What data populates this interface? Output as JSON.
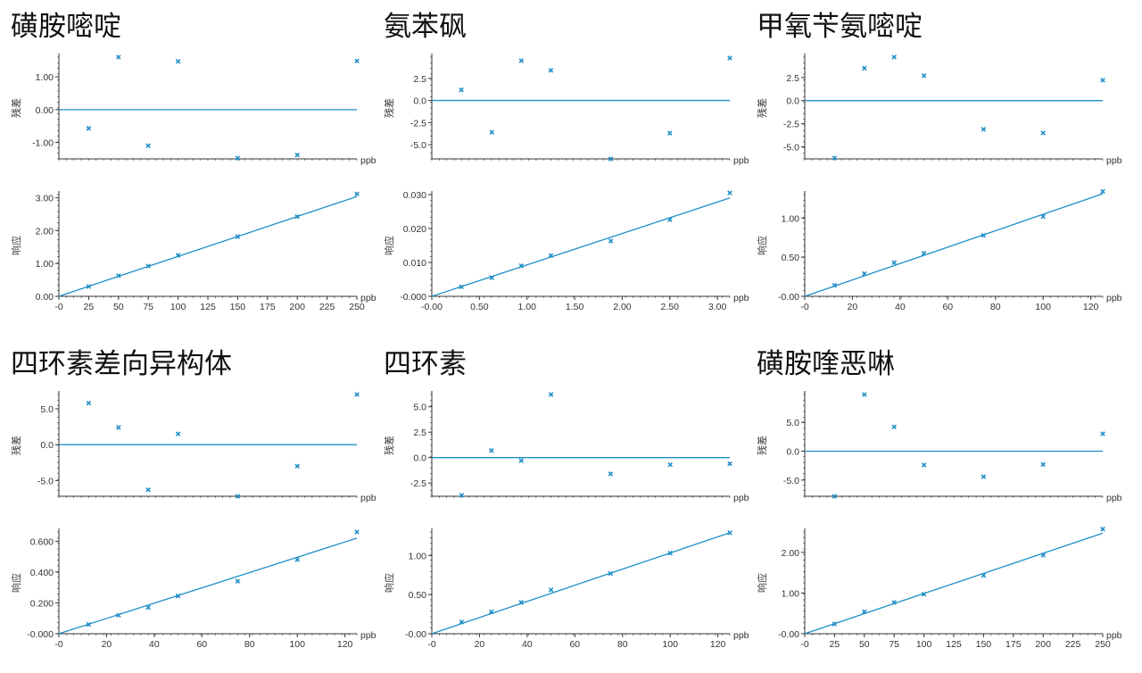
{
  "colors": {
    "series": "#1f8fc7",
    "axis": "#333333",
    "text": "#333333",
    "title": "#111111"
  },
  "chart_data": [
    {
      "title": "磺胺嘧啶",
      "residual": {
        "type": "scatter",
        "ylabel": "残差",
        "xunit": "ppb",
        "xlim": [
          0,
          250
        ],
        "ylim": [
          -1.5,
          1.6
        ],
        "yticks": [
          1.0,
          0.0,
          -1.0
        ],
        "ytick_labels": [
          "1.00",
          "0.00",
          "-1.00"
        ],
        "points": [
          [
            25,
            -0.57
          ],
          [
            50,
            1.6
          ],
          [
            75,
            -1.1
          ],
          [
            100,
            1.47
          ],
          [
            150,
            -1.48
          ],
          [
            200,
            -1.38
          ],
          [
            250,
            1.48
          ]
        ]
      },
      "response": {
        "type": "scatter+line",
        "ylabel": "响应",
        "xunit": "ppb",
        "xlim": [
          0,
          250
        ],
        "ylim": [
          0,
          3.1
        ],
        "xticks": [
          0,
          25,
          50,
          75,
          100,
          125,
          150,
          175,
          200,
          225,
          250
        ],
        "xtick_labels": [
          "-0",
          "25",
          "50",
          "75",
          "100",
          "125",
          "150",
          "175",
          "200",
          "225",
          "250"
        ],
        "yticks": [
          0,
          1,
          2,
          3
        ],
        "ytick_labels": [
          "0.00",
          "1.00",
          "2.00",
          "3.00"
        ],
        "points": [
          [
            25,
            0.3
          ],
          [
            50,
            0.63
          ],
          [
            75,
            0.92
          ],
          [
            100,
            1.25
          ],
          [
            150,
            1.82
          ],
          [
            200,
            2.43
          ],
          [
            250,
            3.12
          ]
        ],
        "fit": [
          [
            0,
            0.0
          ],
          [
            250,
            3.04
          ]
        ]
      }
    },
    {
      "title": "氨苯砜",
      "residual": {
        "type": "scatter",
        "ylabel": "残差",
        "xunit": "ppb",
        "xlim": [
          0,
          3.13
        ],
        "ylim": [
          -6.6,
          4.9
        ],
        "yticks": [
          2.5,
          0.0,
          -2.5,
          -5.0
        ],
        "ytick_labels": [
          "2.5",
          "0.0",
          "-2.5",
          "-5.0"
        ],
        "points": [
          [
            0.31,
            1.2
          ],
          [
            0.63,
            -3.6
          ],
          [
            0.94,
            4.5
          ],
          [
            1.25,
            3.4
          ],
          [
            1.88,
            -6.6
          ],
          [
            2.5,
            -3.7
          ],
          [
            3.13,
            4.8
          ]
        ]
      },
      "response": {
        "type": "scatter+line",
        "ylabel": "响应",
        "xunit": "ppb",
        "xlim": [
          0,
          3.13
        ],
        "ylim": [
          0,
          0.03
        ],
        "xticks": [
          0,
          0.5,
          1.0,
          1.5,
          2.0,
          2.5,
          3.0
        ],
        "xtick_labels": [
          "-0.00",
          "0.50",
          "1.00",
          "1.50",
          "2.00",
          "2.50",
          "3.00"
        ],
        "yticks": [
          0,
          0.01,
          0.02,
          0.03
        ],
        "ytick_labels": [
          "-0.000",
          "0.010",
          "0.020",
          "0.030"
        ],
        "points": [
          [
            0.31,
            0.0028
          ],
          [
            0.63,
            0.0055
          ],
          [
            0.94,
            0.009
          ],
          [
            1.25,
            0.012
          ],
          [
            1.88,
            0.0163
          ],
          [
            2.5,
            0.0226
          ],
          [
            3.13,
            0.0305
          ]
        ],
        "fit": [
          [
            0,
            0.0
          ],
          [
            3.13,
            0.029
          ]
        ]
      }
    },
    {
      "title": "甲氧苄氨嘧啶",
      "residual": {
        "type": "scatter",
        "ylabel": "残差",
        "xunit": "ppb",
        "xlim": [
          0,
          125
        ],
        "ylim": [
          -6.3,
          4.7
        ],
        "yticks": [
          2.5,
          0.0,
          -2.5,
          -5.0
        ],
        "ytick_labels": [
          "2.5",
          "0.0",
          "-2.5",
          "-5.0"
        ],
        "points": [
          [
            12.5,
            -6.2
          ],
          [
            25,
            3.5
          ],
          [
            37.5,
            4.7
          ],
          [
            50,
            2.7
          ],
          [
            75,
            -3.1
          ],
          [
            100,
            -3.5
          ],
          [
            125,
            2.2
          ]
        ]
      },
      "response": {
        "type": "scatter+line",
        "ylabel": "响应",
        "xunit": "ppb",
        "xlim": [
          0,
          125
        ],
        "ylim": [
          0,
          1.3
        ],
        "xticks": [
          0,
          20,
          40,
          60,
          80,
          100,
          120
        ],
        "xtick_labels": [
          "-0",
          "20",
          "40",
          "60",
          "80",
          "100",
          "120"
        ],
        "yticks": [
          0,
          0.5,
          1.0
        ],
        "ytick_labels": [
          "-0.00",
          "0.50",
          "1.00"
        ],
        "points": [
          [
            12.5,
            0.14
          ],
          [
            25,
            0.29
          ],
          [
            37.5,
            0.43
          ],
          [
            50,
            0.55
          ],
          [
            75,
            0.78
          ],
          [
            100,
            1.02
          ],
          [
            125,
            1.34
          ]
        ],
        "fit": [
          [
            0,
            0.0
          ],
          [
            125,
            1.31
          ]
        ]
      }
    },
    {
      "title": "四环素差向异构体",
      "residual": {
        "type": "scatter",
        "ylabel": "残差",
        "xunit": "ppb",
        "xlim": [
          0,
          125
        ],
        "ylim": [
          -7.2,
          7.0
        ],
        "yticks": [
          5.0,
          0.0,
          -5.0
        ],
        "ytick_labels": [
          "5.0",
          "0.0",
          "-5.0"
        ],
        "points": [
          [
            12.5,
            5.8
          ],
          [
            25,
            2.4
          ],
          [
            37.5,
            -6.3
          ],
          [
            50,
            1.5
          ],
          [
            75,
            -7.2
          ],
          [
            100,
            -3.0
          ],
          [
            125,
            7.0
          ]
        ]
      },
      "response": {
        "type": "scatter+line",
        "ylabel": "响应",
        "xunit": "ppb",
        "xlim": [
          0,
          125
        ],
        "ylim": [
          0,
          0.66
        ],
        "xticks": [
          0,
          20,
          40,
          60,
          80,
          100,
          120
        ],
        "xtick_labels": [
          "-0",
          "20",
          "40",
          "60",
          "80",
          "100",
          "120"
        ],
        "yticks": [
          0,
          0.2,
          0.4,
          0.6
        ],
        "ytick_labels": [
          "-0.000",
          "0.200",
          "0.400",
          "0.600"
        ],
        "points": [
          [
            12.5,
            0.06
          ],
          [
            25,
            0.12
          ],
          [
            37.5,
            0.17
          ],
          [
            50,
            0.245
          ],
          [
            75,
            0.34
          ],
          [
            100,
            0.48
          ],
          [
            125,
            0.66
          ]
        ],
        "fit": [
          [
            0,
            0.0
          ],
          [
            125,
            0.62
          ]
        ]
      }
    },
    {
      "title": "四环素",
      "residual": {
        "type": "scatter",
        "ylabel": "残差",
        "xunit": "ppb",
        "xlim": [
          0,
          125
        ],
        "ylim": [
          -3.8,
          6.2
        ],
        "yticks": [
          5.0,
          2.5,
          0.0,
          -2.5
        ],
        "ytick_labels": [
          "5.0",
          "2.5",
          "0.0",
          "-2.5"
        ],
        "points": [
          [
            12.5,
            -3.7
          ],
          [
            25,
            0.7
          ],
          [
            37.5,
            -0.3
          ],
          [
            50,
            6.2
          ],
          [
            75,
            -1.6
          ],
          [
            100,
            -0.7
          ],
          [
            125,
            -0.6
          ]
        ]
      },
      "response": {
        "type": "scatter+line",
        "ylabel": "响应",
        "xunit": "ppb",
        "xlim": [
          0,
          125
        ],
        "ylim": [
          0,
          1.3
        ],
        "xticks": [
          0,
          20,
          40,
          60,
          80,
          100,
          120
        ],
        "xtick_labels": [
          "-0",
          "20",
          "40",
          "60",
          "80",
          "100",
          "120"
        ],
        "yticks": [
          0,
          0.5,
          1.0
        ],
        "ytick_labels": [
          "-0.00",
          "0.50",
          "1.00"
        ],
        "points": [
          [
            12.5,
            0.15
          ],
          [
            25,
            0.28
          ],
          [
            37.5,
            0.4
          ],
          [
            50,
            0.56
          ],
          [
            75,
            0.77
          ],
          [
            100,
            1.03
          ],
          [
            125,
            1.29
          ]
        ],
        "fit": [
          [
            0,
            0.0
          ],
          [
            125,
            1.29
          ]
        ]
      }
    },
    {
      "title": "磺胺喹恶啉",
      "residual": {
        "type": "scatter",
        "ylabel": "残差",
        "xunit": "ppb",
        "xlim": [
          0,
          250
        ],
        "ylim": [
          -7.8,
          9.8
        ],
        "yticks": [
          5.0,
          0.0,
          -5.0
        ],
        "ytick_labels": [
          "5.0",
          "0.0",
          "-5.0"
        ],
        "points": [
          [
            25,
            -7.8
          ],
          [
            50,
            9.8
          ],
          [
            75,
            4.2
          ],
          [
            100,
            -2.4
          ],
          [
            150,
            -4.4
          ],
          [
            200,
            -2.3
          ],
          [
            250,
            3.0
          ]
        ]
      },
      "response": {
        "type": "scatter+line",
        "ylabel": "响应",
        "xunit": "ppb",
        "xlim": [
          0,
          250
        ],
        "ylim": [
          0,
          2.5
        ],
        "xticks": [
          0,
          25,
          50,
          75,
          100,
          125,
          150,
          175,
          200,
          225,
          250
        ],
        "xtick_labels": [
          "-0",
          "25",
          "50",
          "75",
          "100",
          "125",
          "150",
          "175",
          "200",
          "225",
          "250"
        ],
        "yticks": [
          0,
          1,
          2
        ],
        "ytick_labels": [
          "-0.00",
          "1.00",
          "2.00"
        ],
        "points": [
          [
            25,
            0.24
          ],
          [
            50,
            0.54
          ],
          [
            75,
            0.77
          ],
          [
            100,
            0.97
          ],
          [
            150,
            1.43
          ],
          [
            200,
            1.93
          ],
          [
            250,
            2.57
          ]
        ],
        "fit": [
          [
            0,
            0.0
          ],
          [
            250,
            2.47
          ]
        ]
      }
    }
  ]
}
